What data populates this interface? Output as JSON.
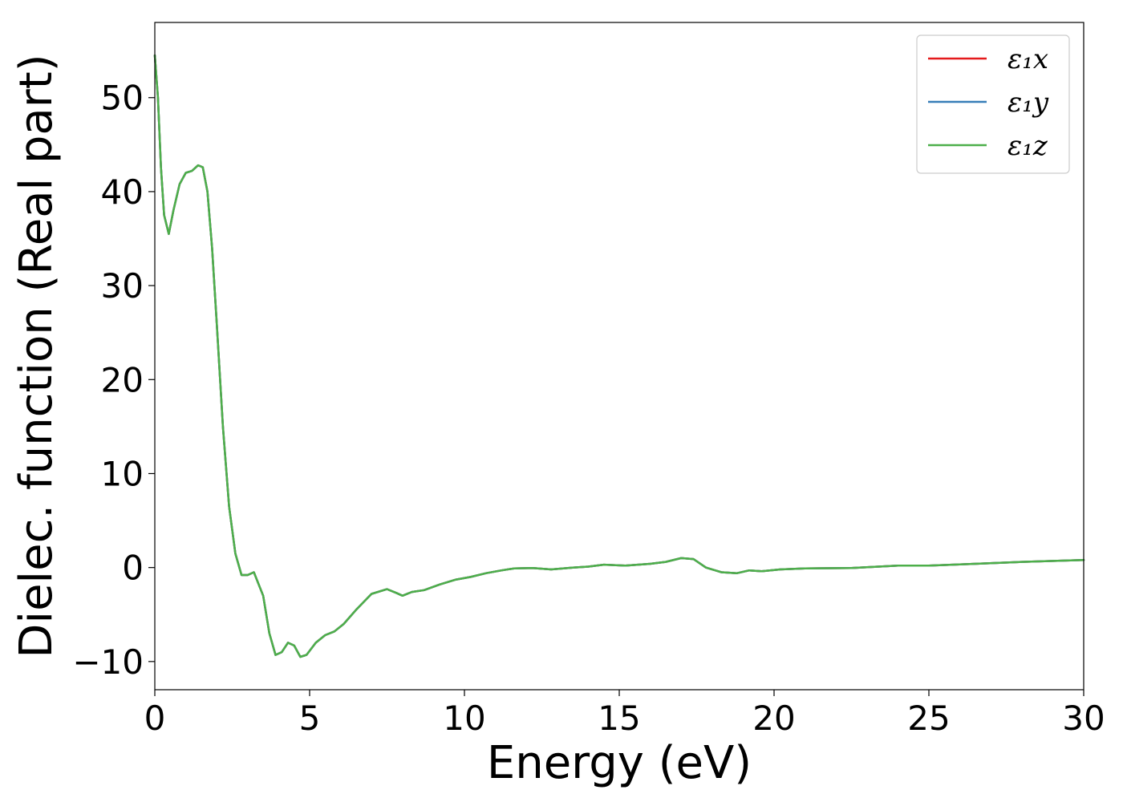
{
  "chart_data": {
    "type": "line",
    "title": "",
    "xlabel": "Energy (eV)",
    "ylabel": "Dielec. function (Real part)",
    "xlim": [
      0,
      30
    ],
    "ylim": [
      -13,
      58
    ],
    "xticks": [
      0,
      5,
      10,
      15,
      20,
      25,
      30
    ],
    "xtick_labels": [
      "0",
      "5",
      "10",
      "15",
      "20",
      "25",
      "30"
    ],
    "yticks": [
      -10,
      0,
      10,
      20,
      30,
      40,
      50
    ],
    "ytick_labels": [
      "−10",
      "0",
      "10",
      "20",
      "30",
      "40",
      "50"
    ],
    "grid": false,
    "legend_position": "top-right",
    "legend_entries": [
      {
        "name": "ε₁x",
        "color": "#e41a1c"
      },
      {
        "name": "ε₁y",
        "color": "#377eb8"
      },
      {
        "name": "ε₁z",
        "color": "#4daf4a"
      }
    ],
    "x": [
      0.0,
      0.1,
      0.2,
      0.3,
      0.45,
      0.6,
      0.8,
      1.0,
      1.2,
      1.4,
      1.55,
      1.7,
      1.85,
      2.0,
      2.2,
      2.4,
      2.6,
      2.8,
      3.0,
      3.2,
      3.5,
      3.7,
      3.9,
      4.1,
      4.3,
      4.5,
      4.7,
      4.9,
      5.2,
      5.5,
      5.8,
      6.1,
      6.5,
      7.0,
      7.5,
      7.8,
      8.0,
      8.3,
      8.7,
      9.2,
      9.7,
      10.2,
      10.7,
      11.2,
      11.6,
      12.2,
      12.8,
      13.5,
      14.0,
      14.5,
      15.2,
      16.0,
      16.5,
      17.0,
      17.4,
      17.8,
      18.3,
      18.8,
      19.2,
      19.6,
      20.2,
      21.0,
      22.5,
      24.0,
      25.0,
      26.5,
      28.0,
      30.0
    ],
    "series": [
      {
        "name": "ε₁x",
        "color": "#e41a1c",
        "values": [
          54.5,
          50.0,
          42.5,
          37.5,
          35.5,
          38.0,
          40.8,
          42.0,
          42.2,
          42.8,
          42.6,
          40.0,
          34.0,
          26.0,
          15.0,
          6.5,
          1.5,
          -0.8,
          -0.8,
          -0.5,
          -3.0,
          -7.0,
          -9.3,
          -9.0,
          -8.0,
          -8.3,
          -9.5,
          -9.3,
          -8.0,
          -7.2,
          -6.8,
          -6.0,
          -4.5,
          -2.8,
          -2.3,
          -2.7,
          -3.0,
          -2.6,
          -2.4,
          -1.8,
          -1.3,
          -1.0,
          -0.6,
          -0.3,
          -0.1,
          -0.05,
          -0.2,
          0.0,
          0.1,
          0.3,
          0.2,
          0.4,
          0.6,
          1.0,
          0.9,
          0.0,
          -0.5,
          -0.6,
          -0.3,
          -0.4,
          -0.2,
          -0.1,
          -0.05,
          0.2,
          0.2,
          0.4,
          0.6,
          0.8
        ]
      },
      {
        "name": "ε₁y",
        "color": "#377eb8",
        "values": [
          54.5,
          50.0,
          42.5,
          37.5,
          35.5,
          38.0,
          40.8,
          42.0,
          42.2,
          42.8,
          42.6,
          40.0,
          34.0,
          26.0,
          15.0,
          6.5,
          1.5,
          -0.8,
          -0.8,
          -0.5,
          -3.0,
          -7.0,
          -9.3,
          -9.0,
          -8.0,
          -8.3,
          -9.5,
          -9.3,
          -8.0,
          -7.2,
          -6.8,
          -6.0,
          -4.5,
          -2.8,
          -2.3,
          -2.7,
          -3.0,
          -2.6,
          -2.4,
          -1.8,
          -1.3,
          -1.0,
          -0.6,
          -0.3,
          -0.1,
          -0.05,
          -0.2,
          0.0,
          0.1,
          0.3,
          0.2,
          0.4,
          0.6,
          1.0,
          0.9,
          0.0,
          -0.5,
          -0.6,
          -0.3,
          -0.4,
          -0.2,
          -0.1,
          -0.05,
          0.2,
          0.2,
          0.4,
          0.6,
          0.8
        ]
      },
      {
        "name": "ε₁z",
        "color": "#4daf4a",
        "values": [
          54.5,
          50.0,
          42.5,
          37.5,
          35.5,
          38.0,
          40.8,
          42.0,
          42.2,
          42.8,
          42.6,
          40.0,
          34.0,
          26.0,
          15.0,
          6.5,
          1.5,
          -0.8,
          -0.8,
          -0.5,
          -3.0,
          -7.0,
          -9.3,
          -9.0,
          -8.0,
          -8.3,
          -9.5,
          -9.3,
          -8.0,
          -7.2,
          -6.8,
          -6.0,
          -4.5,
          -2.8,
          -2.3,
          -2.7,
          -3.0,
          -2.6,
          -2.4,
          -1.8,
          -1.3,
          -1.0,
          -0.6,
          -0.3,
          -0.1,
          -0.05,
          -0.2,
          0.0,
          0.1,
          0.3,
          0.2,
          0.4,
          0.6,
          1.0,
          0.9,
          0.0,
          -0.5,
          -0.6,
          -0.3,
          -0.4,
          -0.2,
          -0.1,
          -0.05,
          0.2,
          0.2,
          0.4,
          0.6,
          0.8
        ]
      }
    ]
  }
}
